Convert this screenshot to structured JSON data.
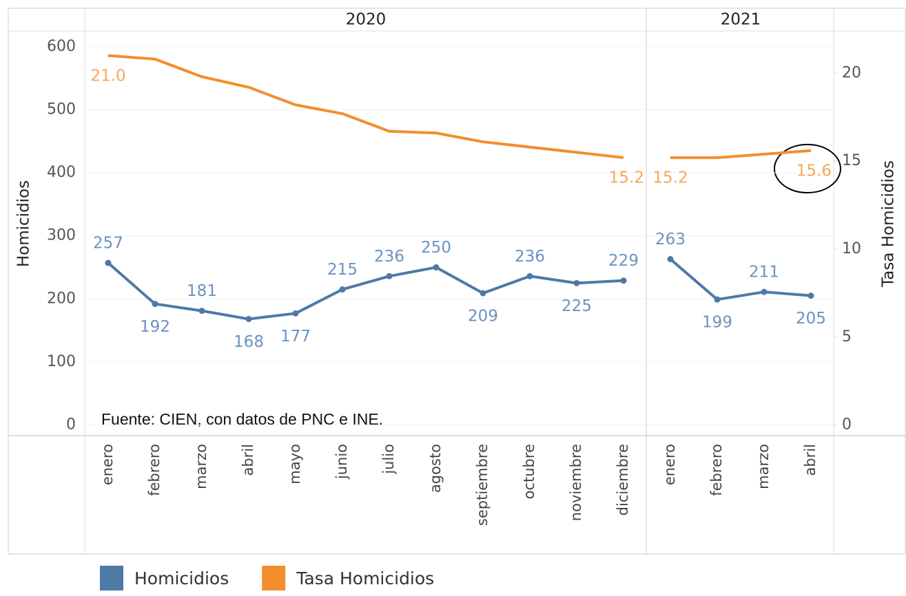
{
  "chart_data": {
    "type": "line",
    "ylabel": "Homicidios",
    "y2label": "Tasa Homicidios",
    "annotation": "Fuente: CIEN, con datos de PNC e INE.",
    "ylim": [
      -17,
      625
    ],
    "yticks": [
      0,
      100,
      200,
      300,
      400,
      500,
      600
    ],
    "y2lim": [
      -0.6,
      22.4
    ],
    "y2ticks": [
      0,
      5,
      10,
      15,
      20
    ],
    "grid": true,
    "panels": [
      {
        "title": "2020",
        "categories": [
          "enero",
          "febrero",
          "marzo",
          "abril",
          "mayo",
          "junio",
          "julio",
          "agosto",
          "septiembre",
          "octubre",
          "noviembre",
          "diciembre"
        ]
      },
      {
        "title": "2021",
        "categories": [
          "enero",
          "febrero",
          "marzo",
          "abril"
        ]
      }
    ],
    "series": [
      {
        "name": "Homicidios",
        "color": "#4e79a7",
        "values": [
          [
            257,
            192,
            181,
            168,
            177,
            215,
            236,
            250,
            209,
            236,
            225,
            229
          ],
          [
            263,
            199,
            211,
            205
          ]
        ]
      },
      {
        "name": "Tasa Homicidios",
        "color": "#f28e2b",
        "axis": "y2",
        "values": [
          [
            21.0,
            20.8,
            19.8,
            19.2,
            18.2,
            17.7,
            16.7,
            16.6,
            16.1,
            15.8,
            15.5,
            15.2
          ],
          [
            15.2,
            15.2,
            15.4,
            15.6
          ]
        ],
        "value_labels": [
          [
            "21.0",
            null,
            null,
            null,
            null,
            null,
            null,
            null,
            null,
            null,
            null,
            "15.2"
          ],
          [
            "15.2",
            null,
            null,
            "15.6"
          ]
        ]
      }
    ]
  }
}
